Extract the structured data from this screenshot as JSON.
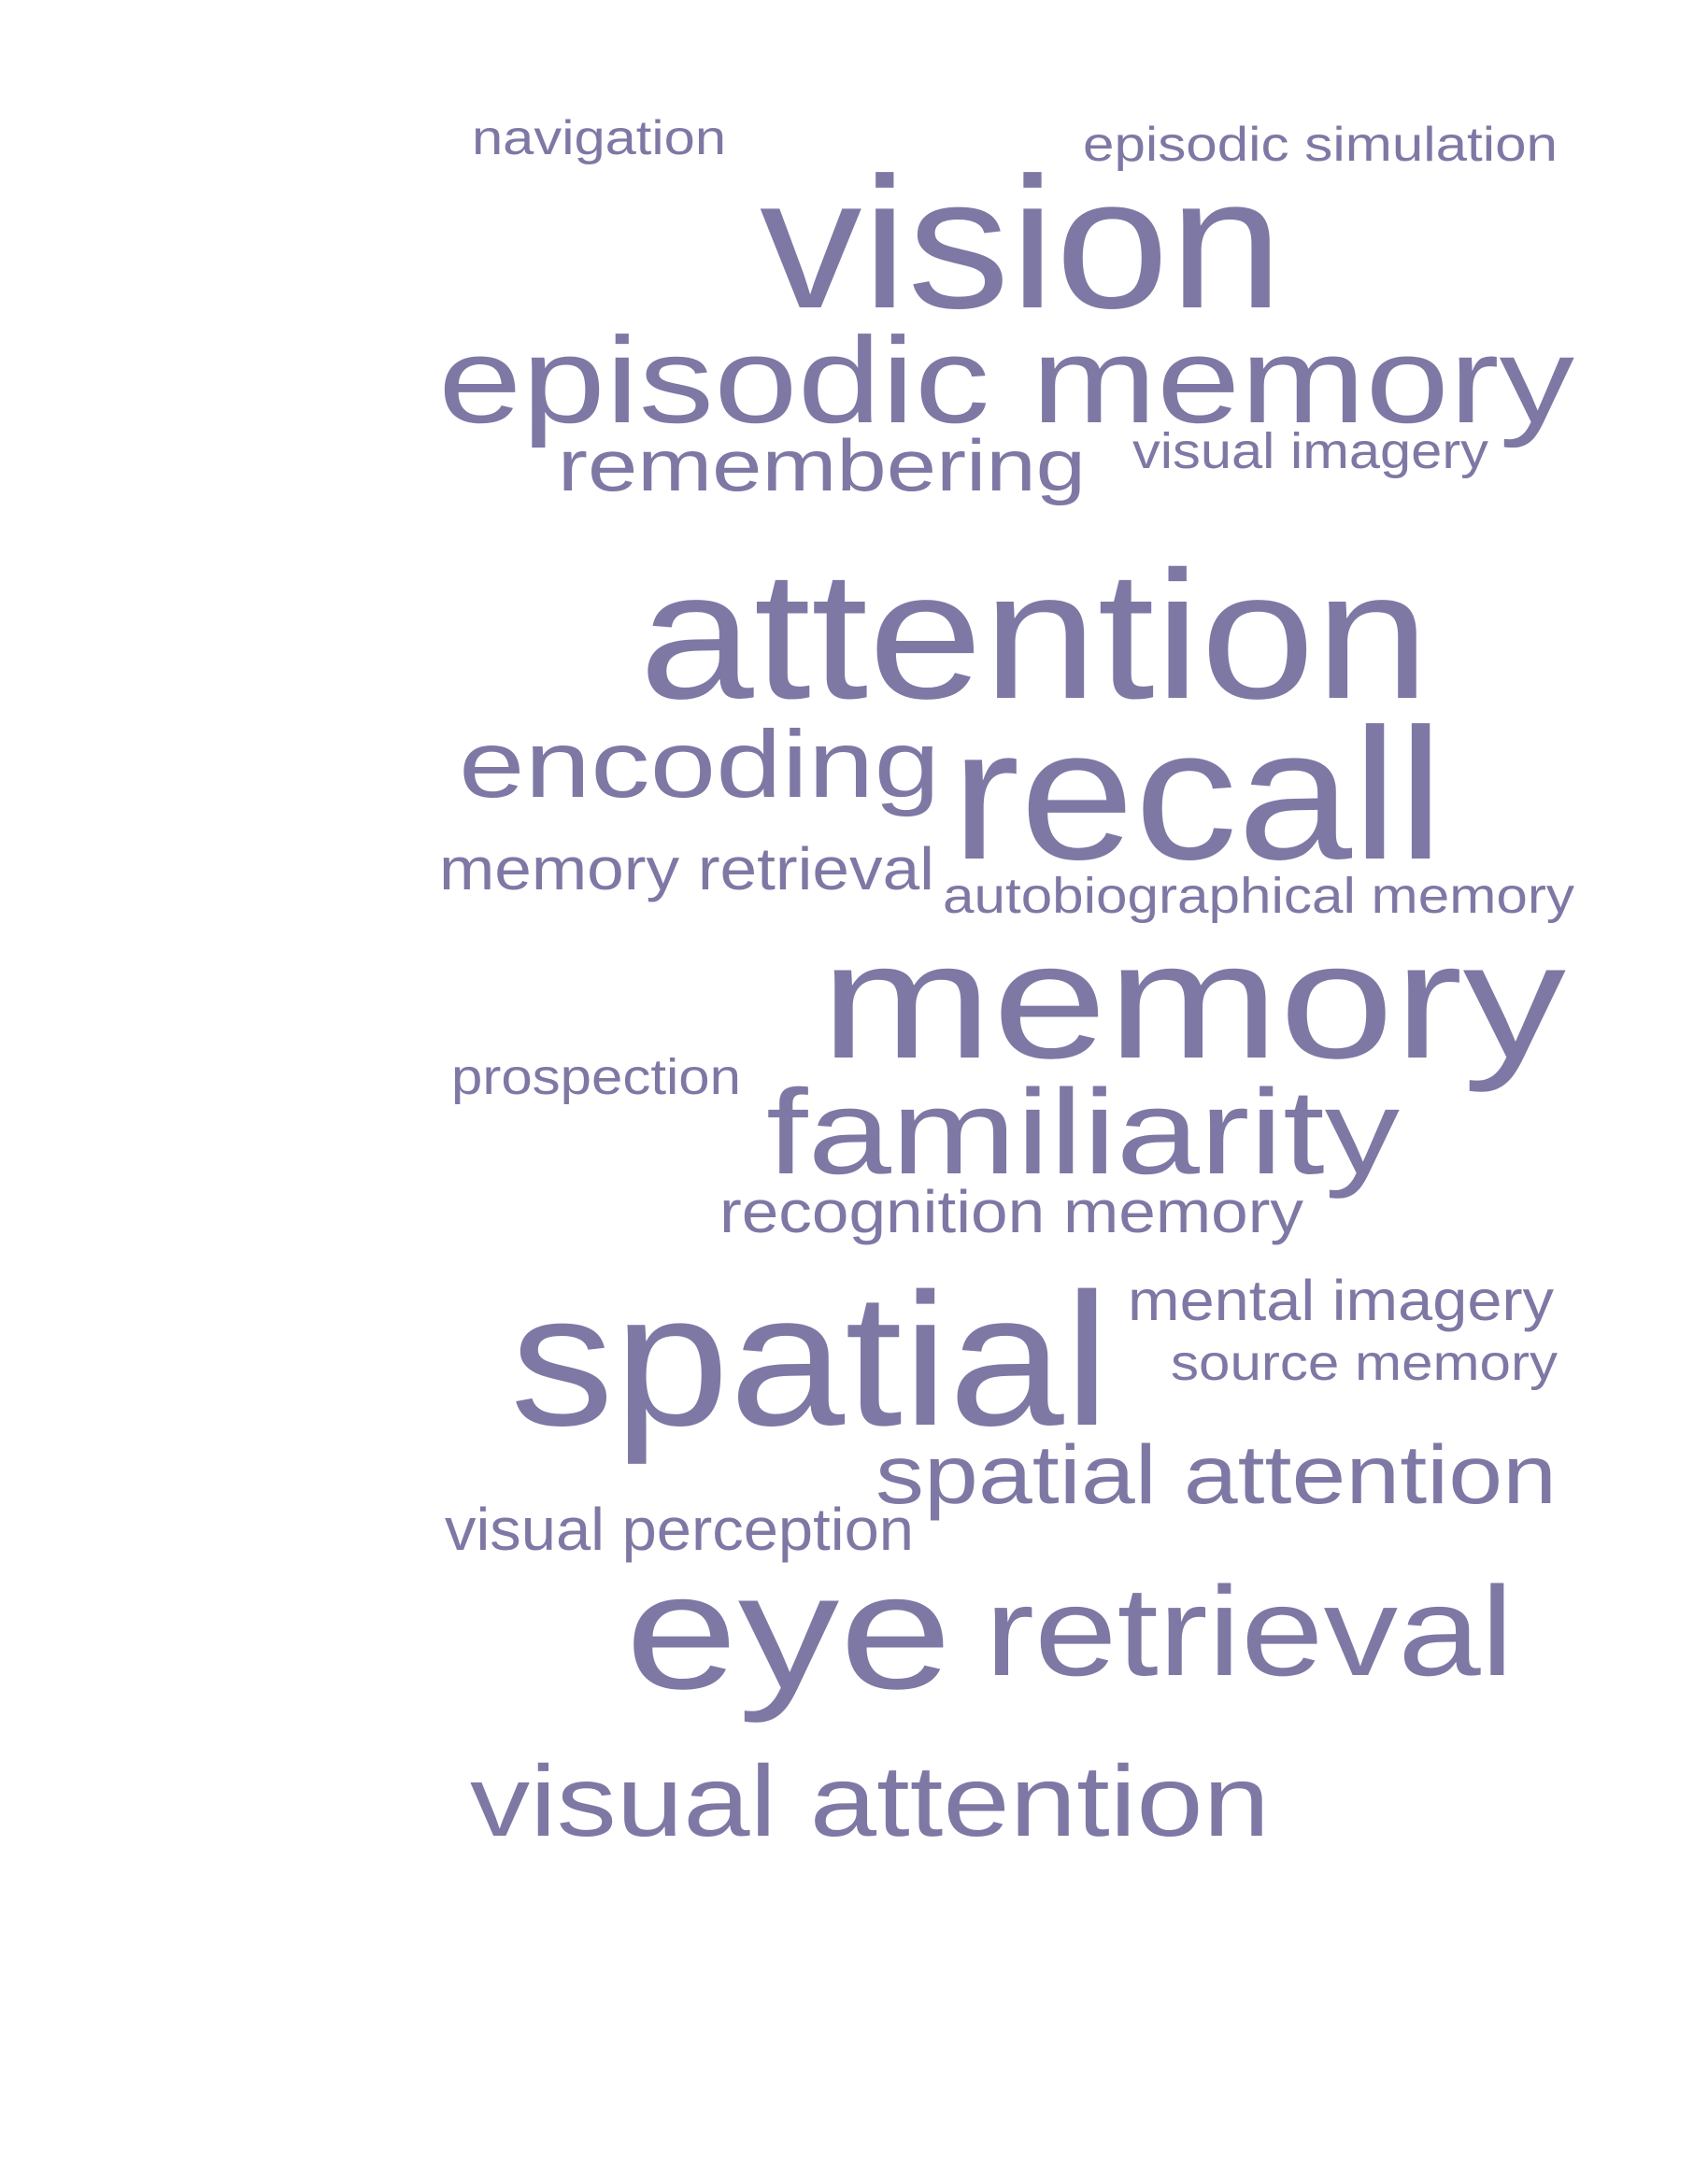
{
  "word_cloud": {
    "color": "#7e78a5",
    "words": [
      "navigation",
      "episodic simulation",
      "vision",
      "episodic memory",
      "remembering",
      "visual imagery",
      "attention",
      "encoding",
      "recall",
      "memory retrieval",
      "autobiographical memory",
      "memory",
      "prospection",
      "familiarity",
      "recognition memory",
      "mental imagery",
      "spatial",
      "source memory",
      "spatial attention",
      "visual perception",
      "eye",
      "retrieval",
      "visual attention"
    ]
  }
}
